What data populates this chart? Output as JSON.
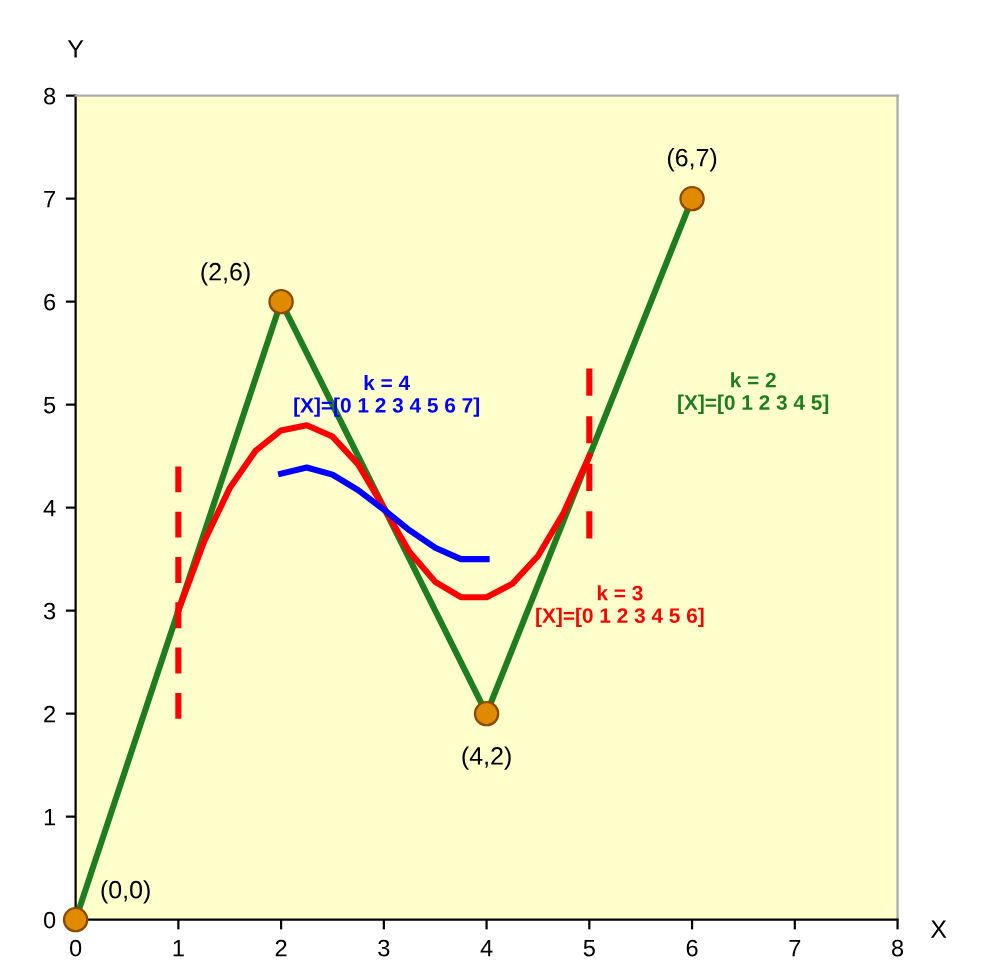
{
  "chart_data": {
    "type": "line",
    "xlabel": "X",
    "ylabel": "Y",
    "xlim": [
      0,
      8
    ],
    "ylim": [
      0,
      8
    ],
    "xticks": [
      0,
      1,
      2,
      3,
      4,
      5,
      6,
      7,
      8
    ],
    "yticks": [
      0,
      1,
      2,
      3,
      4,
      5,
      6,
      7,
      8
    ],
    "grid": false,
    "legend": false,
    "series": [
      {
        "name": "k = 2\n[X]=[0 1 2 3 4 5]",
        "color": "#1e7d1e",
        "x": [
          0,
          2,
          4,
          6
        ],
        "values": [
          0,
          6,
          2,
          7
        ]
      },
      {
        "name": "k = 3\n[X]=[0 1 2 3 4 5 6]",
        "color": "#ff0000",
        "x": [
          1,
          1.25,
          1.5,
          1.75,
          2,
          2.25,
          2.5,
          2.75,
          3,
          3.25,
          3.5,
          3.75,
          4,
          4.25,
          4.5,
          4.75,
          5
        ],
        "values": [
          3,
          3.67,
          4.19,
          4.55,
          4.75,
          4.8,
          4.69,
          4.42,
          4,
          3.57,
          3.28,
          3.13,
          3.13,
          3.26,
          3.53,
          3.95,
          4.5
        ]
      },
      {
        "name": "k = 4\n[X]=[0 1 2 3 4 5 6 7]",
        "color": "#0000ff",
        "x": [
          2,
          2.25,
          2.5,
          2.75,
          3,
          3.25,
          3.5,
          3.75,
          4
        ],
        "values": [
          4.33,
          4.39,
          4.32,
          4.17,
          3.98,
          3.78,
          3.61,
          3.5,
          3.5
        ]
      },
      {
        "color": "#ff0000",
        "line_style": "dashed",
        "x": [
          1,
          1
        ],
        "values": [
          1.95,
          4.4
        ]
      },
      {
        "color": "#ff0000",
        "line_style": "dashed",
        "x": [
          5,
          5
        ],
        "values": [
          3.7,
          5.35
        ]
      },
      {
        "type": "scatter",
        "marker": "circle",
        "color": "#e08a00",
        "x": [
          0,
          2,
          4,
          6
        ],
        "values": [
          0,
          6,
          2,
          7
        ]
      }
    ],
    "annotations": [
      {
        "text": "(0,0)",
        "x": 0,
        "y": 0
      },
      {
        "text": "(2,6)",
        "x": 2,
        "y": 6
      },
      {
        "text": "(4,2)",
        "x": 4,
        "y": 2
      },
      {
        "text": "(6,7)",
        "x": 6,
        "y": 7
      }
    ]
  }
}
